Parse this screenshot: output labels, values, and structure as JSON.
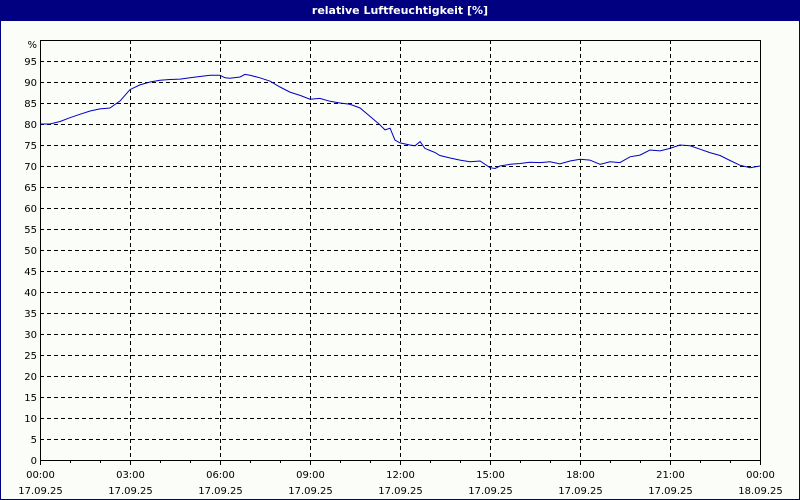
{
  "window": {
    "title": "relative Luftfeuchtigkeit [%]"
  },
  "colors": {
    "titlebar": "#000080",
    "border": "#000080",
    "line": "#0000c0",
    "grid": "#000000",
    "background": "#fbfdf9"
  },
  "chart_data": {
    "type": "line",
    "title": "relative Luftfeuchtigkeit [%]",
    "xlabel": "",
    "ylabel": "%",
    "ylim": [
      0,
      100
    ],
    "xlim_hours": [
      0,
      24
    ],
    "grid": true,
    "grid_style": "dashed",
    "y_ticks": [
      0,
      5,
      10,
      15,
      20,
      25,
      30,
      35,
      40,
      45,
      50,
      55,
      60,
      65,
      70,
      75,
      80,
      85,
      90,
      95
    ],
    "y_unit_label": "%",
    "x_ticks": [
      {
        "time": "00:00",
        "date": "17.09.25",
        "hour": 0
      },
      {
        "time": "03:00",
        "date": "17.09.25",
        "hour": 3
      },
      {
        "time": "06:00",
        "date": "17.09.25",
        "hour": 6
      },
      {
        "time": "09:00",
        "date": "17.09.25",
        "hour": 9
      },
      {
        "time": "12:00",
        "date": "17.09.25",
        "hour": 12
      },
      {
        "time": "15:00",
        "date": "17.09.25",
        "hour": 15
      },
      {
        "time": "18:00",
        "date": "17.09.25",
        "hour": 18
      },
      {
        "time": "21:00",
        "date": "17.09.25",
        "hour": 21
      },
      {
        "time": "00:00",
        "date": "18.09.25",
        "hour": 24
      }
    ],
    "minor_tick_interval_hours": 1,
    "series": [
      {
        "name": "relative Luftfeuchtigkeit",
        "x_hours": [
          0,
          0.33,
          0.67,
          1.0,
          1.33,
          1.67,
          2.0,
          2.33,
          2.67,
          3.0,
          3.33,
          3.67,
          4.0,
          4.33,
          4.67,
          5.0,
          5.33,
          5.67,
          6.0,
          6.17,
          6.33,
          6.67,
          6.83,
          7.0,
          7.33,
          7.67,
          8.0,
          8.33,
          8.67,
          9.0,
          9.33,
          9.67,
          10.0,
          10.33,
          10.67,
          11.0,
          11.33,
          11.5,
          11.67,
          11.83,
          12.0,
          12.33,
          12.5,
          12.67,
          12.83,
          13.0,
          13.17,
          13.33,
          13.67,
          14.0,
          14.33,
          14.67,
          15.0,
          15.17,
          15.33,
          15.67,
          16.0,
          16.33,
          16.67,
          17.0,
          17.33,
          17.67,
          18.0,
          18.33,
          18.67,
          19.0,
          19.33,
          19.67,
          20.0,
          20.33,
          20.67,
          21.0,
          21.33,
          21.67,
          22.0,
          22.33,
          22.67,
          23.0,
          23.33,
          23.67,
          24.0
        ],
        "values": [
          80.0,
          80.0,
          80.6,
          81.5,
          82.3,
          83.1,
          83.6,
          83.8,
          85.5,
          88.2,
          89.3,
          90.0,
          90.4,
          90.6,
          90.7,
          91.0,
          91.3,
          91.6,
          91.6,
          91.0,
          90.9,
          91.2,
          91.8,
          91.6,
          91.0,
          90.2,
          88.8,
          87.6,
          86.8,
          85.9,
          86.1,
          85.4,
          85.0,
          84.7,
          83.8,
          81.8,
          79.8,
          78.6,
          79.0,
          76.2,
          75.5,
          75.0,
          74.8,
          75.8,
          74.2,
          73.7,
          73.2,
          72.5,
          71.9,
          71.4,
          71.0,
          71.2,
          69.6,
          69.4,
          70.0,
          70.4,
          70.6,
          70.9,
          70.8,
          71.0,
          70.5,
          71.2,
          71.6,
          71.4,
          70.4,
          71.0,
          70.8,
          72.2,
          72.6,
          73.8,
          73.6,
          74.2,
          75.0,
          74.8,
          74.0,
          73.2,
          72.5,
          71.3,
          70.2,
          69.6,
          70.0
        ]
      }
    ]
  }
}
